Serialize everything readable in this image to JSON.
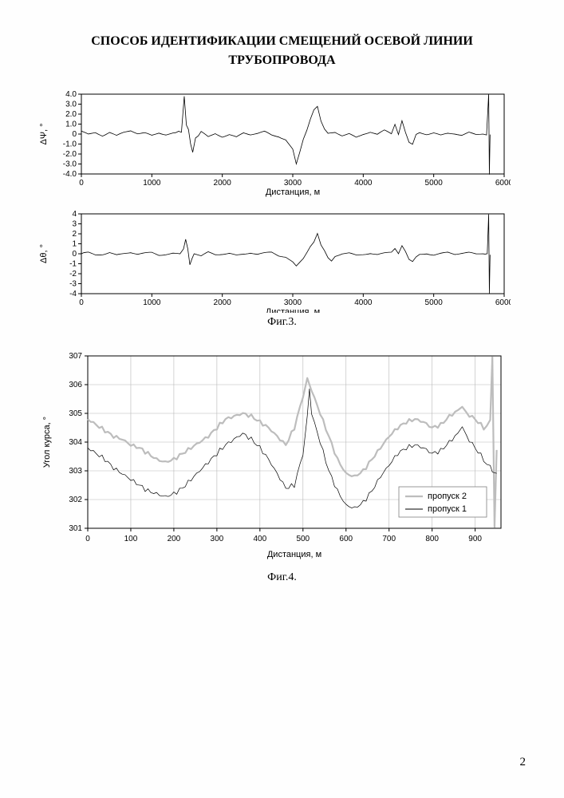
{
  "page": {
    "title_line1": "СПОСОБ ИДЕНТИФИКАЦИИ СМЕЩЕНИЙ ОСЕВОЙ ЛИНИИ",
    "title_line2": "ТРУБОПРОВОДА",
    "pageno": "2"
  },
  "fig3": {
    "type": "line",
    "caption": "Фиг.3.",
    "xlabel": "Дистанция, м",
    "xlim": [
      0,
      6000
    ],
    "xtick_step": 1000,
    "panel_a": {
      "ylabel": "ΔΨ, °",
      "ylim": [
        -4.0,
        4.0
      ],
      "ytick_step": 1.0,
      "ytick_labels": [
        "-4.0",
        "-3.0",
        "-2.0",
        "-1.0",
        "0",
        "1.0",
        "2.0",
        "3.0",
        "4.0"
      ],
      "background_color": "#ffffff",
      "axis_color": "#000000",
      "trace_color": "#000000",
      "line_width": 0.8,
      "series": [
        [
          0,
          0.3
        ],
        [
          100,
          0.0
        ],
        [
          200,
          0.2
        ],
        [
          300,
          -0.1
        ],
        [
          400,
          0.2
        ],
        [
          500,
          -0.2
        ],
        [
          600,
          0.1
        ],
        [
          700,
          0.3
        ],
        [
          800,
          0.0
        ],
        [
          900,
          0.1
        ],
        [
          1000,
          -0.1
        ],
        [
          1100,
          0.2
        ],
        [
          1200,
          0.0
        ],
        [
          1300,
          0.1
        ],
        [
          1420,
          0.2
        ],
        [
          1460,
          3.8
        ],
        [
          1490,
          1.0
        ],
        [
          1520,
          0.5
        ],
        [
          1550,
          -1.0
        ],
        [
          1580,
          -1.8
        ],
        [
          1620,
          -0.4
        ],
        [
          1700,
          0.2
        ],
        [
          1800,
          -0.3
        ],
        [
          1900,
          0.1
        ],
        [
          2000,
          -0.2
        ],
        [
          2100,
          0.0
        ],
        [
          2200,
          -0.3
        ],
        [
          2300,
          0.1
        ],
        [
          2400,
          -0.1
        ],
        [
          2500,
          0.0
        ],
        [
          2600,
          0.2
        ],
        [
          2700,
          -0.1
        ],
        [
          2800,
          -0.2
        ],
        [
          2900,
          -0.5
        ],
        [
          3000,
          -1.5
        ],
        [
          3050,
          -3.0
        ],
        [
          3100,
          -1.8
        ],
        [
          3150,
          -0.5
        ],
        [
          3200,
          0.4
        ],
        [
          3250,
          1.5
        ],
        [
          3300,
          2.4
        ],
        [
          3350,
          2.7
        ],
        [
          3400,
          1.2
        ],
        [
          3450,
          0.4
        ],
        [
          3500,
          0.0
        ],
        [
          3600,
          0.2
        ],
        [
          3700,
          -0.1
        ],
        [
          3800,
          0.1
        ],
        [
          3900,
          -0.3
        ],
        [
          4000,
          0.0
        ],
        [
          4100,
          0.2
        ],
        [
          4200,
          -0.1
        ],
        [
          4300,
          0.3
        ],
        [
          4400,
          0.0
        ],
        [
          4450,
          1.0
        ],
        [
          4500,
          0.0
        ],
        [
          4550,
          1.4
        ],
        [
          4600,
          0.2
        ],
        [
          4650,
          -0.8
        ],
        [
          4700,
          -1.0
        ],
        [
          4750,
          0.0
        ],
        [
          4800,
          0.2
        ],
        [
          4900,
          0.0
        ],
        [
          5000,
          0.1
        ],
        [
          5100,
          -0.2
        ],
        [
          5200,
          0.0
        ],
        [
          5300,
          0.0
        ],
        [
          5400,
          -0.1
        ],
        [
          5500,
          0.2
        ],
        [
          5600,
          0.0
        ],
        [
          5700,
          0.1
        ],
        [
          5750,
          0.0
        ],
        [
          5780,
          4.0
        ],
        [
          5790,
          -4.0
        ],
        [
          5800,
          0.0
        ]
      ]
    },
    "panel_b": {
      "ylabel": "Δθ, °",
      "ylim": [
        -4,
        4
      ],
      "ytick_step": 1,
      "ytick_labels": [
        "-4",
        "-3",
        "-2",
        "-1",
        "0",
        "1",
        "2",
        "3",
        "4"
      ],
      "background_color": "#ffffff",
      "axis_color": "#000000",
      "trace_color": "#000000",
      "line_width": 0.8,
      "series": [
        [
          0,
          0.0
        ],
        [
          100,
          0.1
        ],
        [
          200,
          -0.1
        ],
        [
          300,
          0.0
        ],
        [
          400,
          0.2
        ],
        [
          500,
          -0.1
        ],
        [
          600,
          0.0
        ],
        [
          700,
          0.1
        ],
        [
          800,
          -0.1
        ],
        [
          900,
          0.0
        ],
        [
          1000,
          0.1
        ],
        [
          1100,
          -0.1
        ],
        [
          1200,
          0.0
        ],
        [
          1300,
          0.1
        ],
        [
          1400,
          0.0
        ],
        [
          1450,
          0.5
        ],
        [
          1480,
          1.4
        ],
        [
          1510,
          0.5
        ],
        [
          1540,
          -1.0
        ],
        [
          1570,
          -0.4
        ],
        [
          1600,
          0.0
        ],
        [
          1700,
          -0.3
        ],
        [
          1800,
          0.1
        ],
        [
          1900,
          -0.1
        ],
        [
          2000,
          0.0
        ],
        [
          2100,
          0.1
        ],
        [
          2200,
          -0.1
        ],
        [
          2300,
          0.0
        ],
        [
          2400,
          0.1
        ],
        [
          2500,
          -0.1
        ],
        [
          2600,
          0.0
        ],
        [
          2700,
          0.1
        ],
        [
          2800,
          -0.2
        ],
        [
          2900,
          -0.3
        ],
        [
          3000,
          -0.8
        ],
        [
          3050,
          -1.2
        ],
        [
          3100,
          -0.8
        ],
        [
          3150,
          -0.4
        ],
        [
          3200,
          0.2
        ],
        [
          3250,
          0.8
        ],
        [
          3300,
          1.2
        ],
        [
          3350,
          2.0
        ],
        [
          3400,
          0.8
        ],
        [
          3450,
          0.2
        ],
        [
          3500,
          -0.5
        ],
        [
          3550,
          -0.8
        ],
        [
          3600,
          -0.3
        ],
        [
          3700,
          0.0
        ],
        [
          3800,
          0.1
        ],
        [
          3900,
          -0.1
        ],
        [
          4000,
          0.0
        ],
        [
          4100,
          0.1
        ],
        [
          4200,
          -0.1
        ],
        [
          4300,
          0.0
        ],
        [
          4400,
          0.1
        ],
        [
          4450,
          0.5
        ],
        [
          4500,
          0.0
        ],
        [
          4550,
          0.8
        ],
        [
          4600,
          0.2
        ],
        [
          4650,
          -0.6
        ],
        [
          4700,
          -0.8
        ],
        [
          4750,
          -0.3
        ],
        [
          4800,
          0.0
        ],
        [
          4900,
          0.1
        ],
        [
          5000,
          -0.1
        ],
        [
          5100,
          0.0
        ],
        [
          5200,
          0.1
        ],
        [
          5300,
          -0.1
        ],
        [
          5400,
          0.0
        ],
        [
          5500,
          0.1
        ],
        [
          5600,
          0.0
        ],
        [
          5700,
          0.1
        ],
        [
          5760,
          0.0
        ],
        [
          5780,
          4.0
        ],
        [
          5790,
          -4.0
        ],
        [
          5800,
          0.0
        ]
      ]
    }
  },
  "fig4": {
    "type": "line",
    "caption": "Фиг.4.",
    "xlabel": "Дистанция, м",
    "ylabel": "Угол курса,  °",
    "xlim": [
      0,
      960
    ],
    "xtick_step": 100,
    "xtick_labels": [
      "0",
      "100",
      "200",
      "300",
      "400",
      "500",
      "600",
      "700",
      "800",
      "900"
    ],
    "ylim": [
      301,
      307
    ],
    "ytick_step": 1,
    "ytick_labels": [
      "301",
      "302",
      "303",
      "304",
      "305",
      "306",
      "307"
    ],
    "background_color": "#ffffff",
    "grid_color": "#b8b8b8",
    "axis_color": "#000000",
    "legend_box_color": "#808080",
    "series2": {
      "label": "пропуск 2",
      "color": "#bdbdbd",
      "line_width": 2.2,
      "points": [
        [
          0,
          304.8
        ],
        [
          20,
          304.6
        ],
        [
          40,
          304.4
        ],
        [
          60,
          304.2
        ],
        [
          80,
          304.1
        ],
        [
          100,
          303.9
        ],
        [
          120,
          303.8
        ],
        [
          140,
          303.6
        ],
        [
          160,
          303.4
        ],
        [
          180,
          303.3
        ],
        [
          200,
          303.4
        ],
        [
          220,
          303.6
        ],
        [
          240,
          303.8
        ],
        [
          260,
          304.0
        ],
        [
          280,
          304.2
        ],
        [
          300,
          304.5
        ],
        [
          320,
          304.8
        ],
        [
          340,
          304.9
        ],
        [
          360,
          305.0
        ],
        [
          380,
          304.9
        ],
        [
          400,
          304.7
        ],
        [
          420,
          304.5
        ],
        [
          440,
          304.2
        ],
        [
          460,
          303.9
        ],
        [
          480,
          304.5
        ],
        [
          500,
          305.6
        ],
        [
          510,
          306.3
        ],
        [
          520,
          305.8
        ],
        [
          540,
          305.0
        ],
        [
          560,
          304.2
        ],
        [
          580,
          303.4
        ],
        [
          600,
          302.9
        ],
        [
          620,
          302.8
        ],
        [
          640,
          303.0
        ],
        [
          660,
          303.4
        ],
        [
          680,
          303.8
        ],
        [
          700,
          304.2
        ],
        [
          720,
          304.5
        ],
        [
          740,
          304.7
        ],
        [
          760,
          304.8
        ],
        [
          780,
          304.7
        ],
        [
          800,
          304.5
        ],
        [
          820,
          304.6
        ],
        [
          840,
          304.9
        ],
        [
          860,
          305.1
        ],
        [
          870,
          305.2
        ],
        [
          880,
          305.0
        ],
        [
          900,
          304.8
        ],
        [
          920,
          304.5
        ],
        [
          935,
          304.7
        ],
        [
          940,
          307.0
        ],
        [
          945,
          301.0
        ],
        [
          950,
          303.8
        ]
      ]
    },
    "series1": {
      "label": "пропуск 1",
      "color": "#000000",
      "line_width": 0.7,
      "points": [
        [
          0,
          303.8
        ],
        [
          20,
          303.6
        ],
        [
          40,
          303.4
        ],
        [
          60,
          303.1
        ],
        [
          80,
          302.9
        ],
        [
          100,
          302.7
        ],
        [
          120,
          302.5
        ],
        [
          140,
          302.3
        ],
        [
          160,
          302.2
        ],
        [
          180,
          302.1
        ],
        [
          200,
          302.2
        ],
        [
          220,
          302.4
        ],
        [
          240,
          302.7
        ],
        [
          260,
          303.0
        ],
        [
          280,
          303.3
        ],
        [
          300,
          303.6
        ],
        [
          320,
          303.9
        ],
        [
          340,
          304.1
        ],
        [
          360,
          304.3
        ],
        [
          380,
          304.1
        ],
        [
          400,
          303.8
        ],
        [
          420,
          303.4
        ],
        [
          440,
          302.9
        ],
        [
          460,
          302.4
        ],
        [
          480,
          302.5
        ],
        [
          500,
          303.6
        ],
        [
          510,
          305.0
        ],
        [
          515,
          305.8
        ],
        [
          520,
          305.0
        ],
        [
          540,
          304.0
        ],
        [
          560,
          303.0
        ],
        [
          580,
          302.3
        ],
        [
          600,
          301.8
        ],
        [
          620,
          301.7
        ],
        [
          640,
          301.9
        ],
        [
          660,
          302.3
        ],
        [
          680,
          302.8
        ],
        [
          700,
          303.2
        ],
        [
          720,
          303.6
        ],
        [
          740,
          303.8
        ],
        [
          760,
          303.9
        ],
        [
          780,
          303.8
        ],
        [
          800,
          303.6
        ],
        [
          820,
          303.7
        ],
        [
          840,
          304.0
        ],
        [
          860,
          304.3
        ],
        [
          870,
          304.5
        ],
        [
          880,
          304.2
        ],
        [
          900,
          303.8
        ],
        [
          920,
          303.4
        ],
        [
          935,
          303.1
        ],
        [
          940,
          303.0
        ],
        [
          950,
          303.0
        ]
      ]
    }
  },
  "style": {
    "tick_fontsize": 10,
    "axis_label_fontsize": 11,
    "title_fontsize": 16,
    "caption_fontsize": 14
  }
}
